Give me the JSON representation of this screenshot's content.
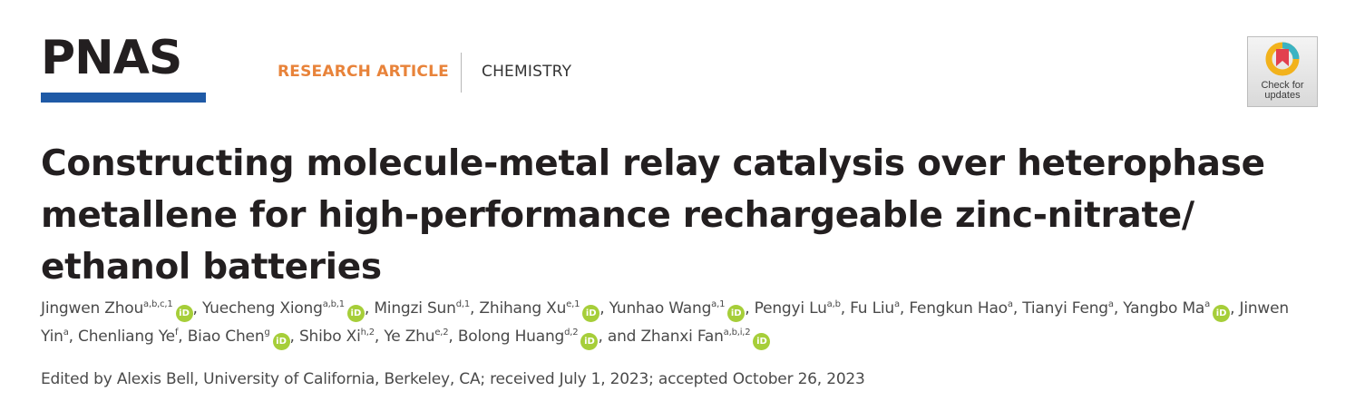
{
  "header": {
    "logo_text": "PNAS",
    "article_type": "RESEARCH ARTICLE",
    "subject": "CHEMISTRY",
    "check_updates_line1": "Check for",
    "check_updates_line2": "updates"
  },
  "colors": {
    "logo_bar": "#1f5aa6",
    "article_type": "#e8833a",
    "orcid": "#a6ce39",
    "text": "#231f20"
  },
  "orcid_label": "iD",
  "title": "Constructing molecule-metal relay catalysis over heterophase metallene for high-performance rechargeable zinc-nitrate/ ethanol batteries",
  "authors": [
    {
      "name": "Jingwen Zhou",
      "aff": "a,b,c,1",
      "orcid": true
    },
    {
      "name": "Yuecheng Xiong",
      "aff": "a,b,1",
      "orcid": true
    },
    {
      "name": "Mingzi Sun",
      "aff": "d,1",
      "orcid": false
    },
    {
      "name": "Zhihang Xu",
      "aff": "e,1",
      "orcid": true
    },
    {
      "name": "Yunhao Wang",
      "aff": "a,1",
      "orcid": true
    },
    {
      "name": "Pengyi Lu",
      "aff": "a,b",
      "orcid": false
    },
    {
      "name": "Fu Liu",
      "aff": "a",
      "orcid": false
    },
    {
      "name": "Fengkun Hao",
      "aff": "a",
      "orcid": false
    },
    {
      "name": "Tianyi Feng",
      "aff": "a",
      "orcid": false
    },
    {
      "name": "Yangbo Ma",
      "aff": "a",
      "orcid": true
    },
    {
      "name": "Jinwen Yin",
      "aff": "a",
      "orcid": false
    },
    {
      "name": "Chenliang Ye",
      "aff": "f",
      "orcid": false
    },
    {
      "name": "Biao Chen",
      "aff": "g",
      "orcid": true
    },
    {
      "name": "Shibo Xi",
      "aff": "h,2",
      "orcid": false
    },
    {
      "name": "Ye Zhu",
      "aff": "e,2",
      "orcid": false
    },
    {
      "name": "Bolong Huang",
      "aff": "d,2",
      "orcid": true
    },
    {
      "name": "Zhanxi Fan",
      "aff": "a,b,i,2",
      "orcid": true
    }
  ],
  "authors_last_connector": "and ",
  "edited_line": "Edited by Alexis Bell, University of California, Berkeley, CA; received July 1, 2023; accepted October 26, 2023"
}
